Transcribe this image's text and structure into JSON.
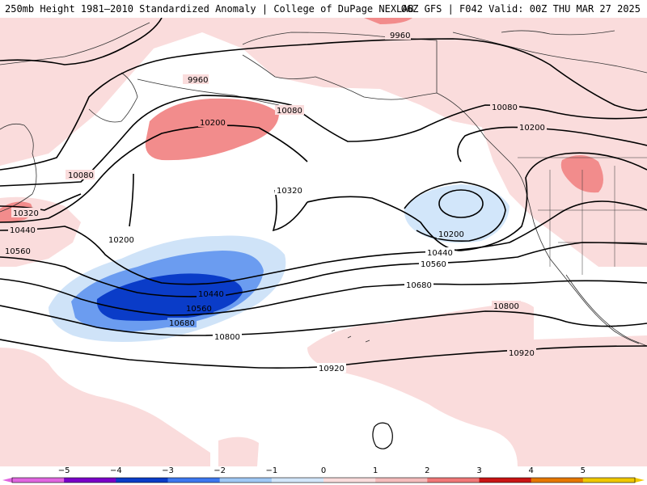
{
  "header": {
    "left_title": "250mb Height 1981–2010 Standardized Anomaly | College of DuPage NEXLAB",
    "right_title": "06Z GFS | F042 Valid: 00Z THU MAR 27 2025"
  },
  "contour_labels": {
    "l9960a": "9960",
    "l9960b": "9960",
    "l10080a": "10080",
    "l10080b": "10080",
    "l10080c": "10080",
    "l10200a": "10200",
    "l10200b": "10200",
    "l10200c": "10200",
    "l10200d": "10200",
    "l10320a": "10320",
    "l10320b": "10320",
    "l10440a": "10440",
    "l10440b": "10440",
    "l10440c": "10440",
    "l10560a": "10560",
    "l10560b": "10560",
    "l10560c": "10560",
    "l10680a": "10680",
    "l10680b": "10680",
    "l10800a": "10800",
    "l10800b": "10800",
    "l10920a": "10920",
    "l10920b": "10920"
  },
  "colorbar": {
    "ticks": [
      "−5",
      "−4",
      "−3",
      "−2",
      "−1",
      "0",
      "1",
      "2",
      "3",
      "4",
      "5"
    ],
    "colors": {
      "neg5": "#e066e0",
      "neg4": "#7a00c8",
      "neg3": "#0a3cc8",
      "neg2": "#3c78f0",
      "neg1": "#a0c8f5",
      "neg0": "#d2e6fa",
      "pos0": "#fadcdc",
      "pos1": "#f5bcbc",
      "pos2": "#f07878",
      "pos3": "#c81414",
      "pos4": "#e67800",
      "pos5": "#f0c800"
    }
  }
}
